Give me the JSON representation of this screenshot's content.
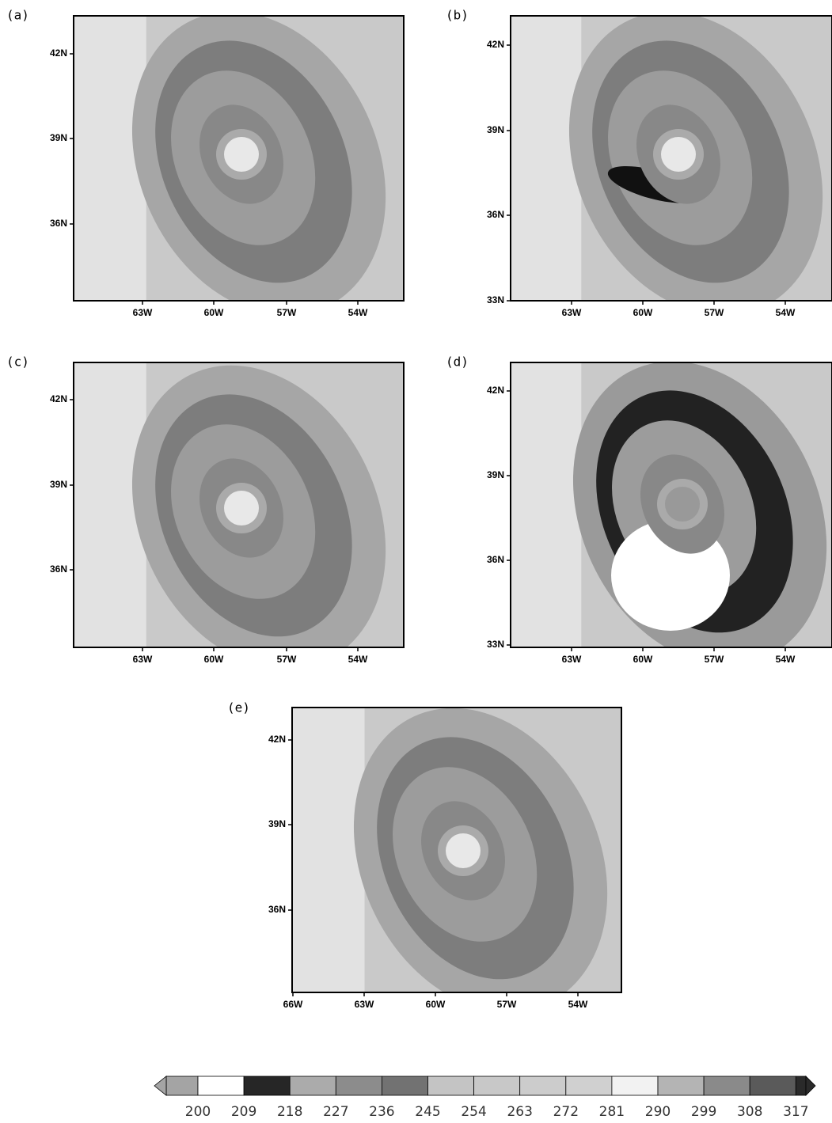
{
  "panels": [
    {
      "label": "(a)",
      "yticks": [
        "42N",
        "39N",
        "36N"
      ],
      "xticks": [
        "63W",
        "60W",
        "57W",
        "54W"
      ]
    },
    {
      "label": "(b)",
      "yticks": [
        "42N",
        "39N",
        "36N",
        "33N"
      ],
      "xticks": [
        "63W",
        "60W",
        "57W",
        "54W"
      ]
    },
    {
      "label": "(c)",
      "yticks": [
        "42N",
        "39N",
        "36N"
      ],
      "xticks": [
        "63W",
        "60W",
        "57W",
        "54W"
      ]
    },
    {
      "label": "(d)",
      "yticks": [
        "42N",
        "39N",
        "36N",
        "33N"
      ],
      "xticks": [
        "63W",
        "60W",
        "57W",
        "54W"
      ]
    },
    {
      "label": "(e)",
      "yticks": [
        "42N",
        "39N",
        "36N"
      ],
      "xticks": [
        "66W",
        "63W",
        "60W",
        "57W",
        "54W"
      ]
    }
  ],
  "colorbar": {
    "labels": [
      200,
      209,
      218,
      227,
      236,
      245,
      254,
      263,
      272,
      281,
      290,
      299,
      308,
      317
    ],
    "colors": [
      "#a4a4a4",
      "#ffffff",
      "#262626",
      "#ababab",
      "#8c8c8c",
      "#727272",
      "#c4c4c4",
      "#c8c8c8",
      "#cccccc",
      "#d0d0d0",
      "#f2f2f2",
      "#b4b4b4",
      "#8a8a8a",
      "#5a5a5a",
      "#2a2a2a"
    ]
  }
}
